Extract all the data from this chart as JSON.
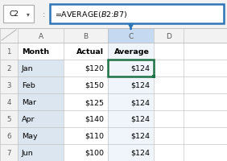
{
  "formula_bar_cell": "C2",
  "formula_bar_formula": "=AVERAGE($B$2:$B$7)",
  "col_letters": [
    "A",
    "B",
    "C",
    "D"
  ],
  "row_numbers": [
    "1",
    "2",
    "3",
    "4",
    "5",
    "6",
    "7"
  ],
  "header_row": [
    "Month",
    "Actual",
    "Average",
    ""
  ],
  "rows": [
    [
      "Jan",
      "$120",
      "$124",
      ""
    ],
    [
      "Feb",
      "$150",
      "$124",
      ""
    ],
    [
      "Mar",
      "$125",
      "$124",
      ""
    ],
    [
      "Apr",
      "$140",
      "$124",
      ""
    ],
    [
      "May",
      "$110",
      "$124",
      ""
    ],
    [
      "Jun",
      "$100",
      "$124",
      ""
    ]
  ],
  "bg_white": "#ffffff",
  "grid_color": "#b8b8b8",
  "col_header_bg": "#f2f2f2",
  "col_c_highlight": "#c5d9f1",
  "row_num_bg": "#f2f2f2",
  "col_a_data_bg": "#dce6f1",
  "formula_bar_bg": "#f2f2f2",
  "formula_border_color": "#2e75b6",
  "arrow_color": "#2e75b6",
  "cell_selected_border": "#1e7145",
  "font_color": "#000000",
  "row_num_color": "#595959"
}
